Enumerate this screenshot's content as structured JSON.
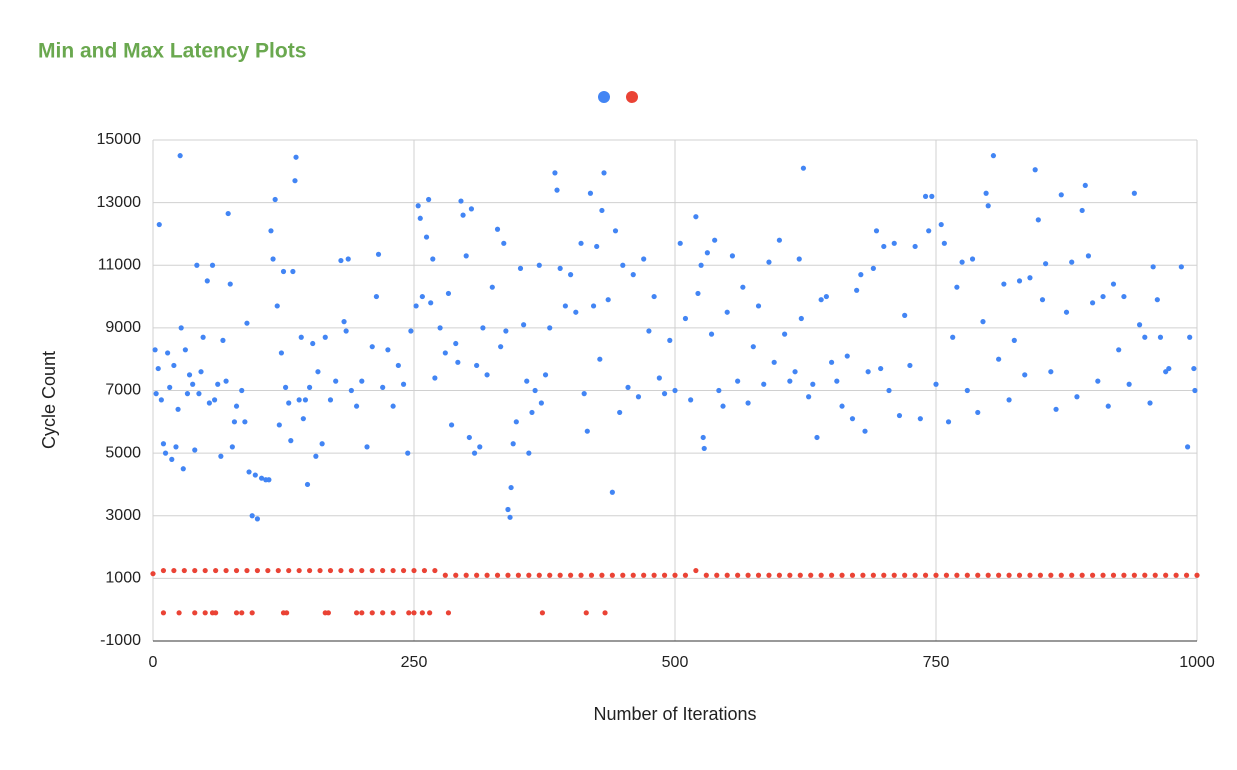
{
  "chart_data": {
    "type": "scatter",
    "title": "Min and Max Latency Plots",
    "x_label": "Number of Iterations",
    "y_label": "Cycle Count",
    "xlim": [
      0,
      1000
    ],
    "xticks": [
      0,
      250,
      500,
      750,
      1000
    ],
    "ylim": [
      -1000,
      15000
    ],
    "yticks": [
      -1000,
      1000,
      3000,
      5000,
      7000,
      9000,
      11000,
      13000,
      15000
    ],
    "grid": true,
    "legend": "top",
    "series": [
      {
        "color": "#4285f4",
        "x": [
          2,
          3,
          5,
          6,
          8,
          10,
          12,
          14,
          16,
          18,
          20,
          22,
          24,
          26,
          27,
          29,
          31,
          33,
          35,
          38,
          40,
          42,
          44,
          46,
          48,
          52,
          54,
          57,
          59,
          62,
          65,
          67,
          70,
          72,
          74,
          76,
          78,
          80,
          85,
          88,
          90,
          92,
          95,
          98,
          100,
          104,
          108,
          111,
          113,
          115,
          117,
          119,
          121,
          123,
          125,
          127,
          130,
          132,
          134,
          136,
          137,
          140,
          142,
          144,
          146,
          148,
          150,
          153,
          156,
          158,
          162,
          165,
          170,
          175,
          180,
          183,
          185,
          187,
          190,
          195,
          200,
          205,
          210,
          214,
          216,
          220,
          225,
          230,
          235,
          240,
          244,
          247,
          252,
          254,
          256,
          258,
          262,
          264,
          266,
          268,
          270,
          275,
          280,
          283,
          286,
          290,
          292,
          295,
          297,
          300,
          303,
          305,
          308,
          310,
          313,
          316,
          320,
          325,
          330,
          333,
          336,
          338,
          340,
          342,
          343,
          345,
          348,
          352,
          355,
          358,
          360,
          363,
          366,
          370,
          372,
          376,
          380,
          385,
          387,
          390,
          395,
          400,
          405,
          410,
          413,
          416,
          419,
          422,
          425,
          428,
          430,
          432,
          436,
          440,
          443,
          447,
          450,
          455,
          460,
          465,
          470,
          475,
          480,
          485,
          490,
          495,
          500,
          505,
          510,
          515,
          520,
          522,
          525,
          527,
          528,
          531,
          535,
          538,
          542,
          546,
          550,
          555,
          560,
          565,
          570,
          575,
          580,
          585,
          590,
          595,
          600,
          605,
          610,
          615,
          619,
          621,
          623,
          628,
          632,
          636,
          640,
          645,
          650,
          655,
          660,
          665,
          670,
          674,
          678,
          682,
          685,
          690,
          693,
          697,
          700,
          705,
          710,
          715,
          720,
          725,
          730,
          735,
          740,
          743,
          746,
          750,
          755,
          758,
          762,
          766,
          770,
          775,
          780,
          785,
          790,
          795,
          798,
          800,
          805,
          810,
          815,
          820,
          825,
          830,
          835,
          840,
          845,
          848,
          852,
          855,
          860,
          865,
          870,
          875,
          880,
          885,
          890,
          893,
          896,
          900,
          905,
          910,
          915,
          920,
          925,
          930,
          935,
          940,
          945,
          950,
          955,
          958,
          962,
          965,
          970,
          973,
          985,
          991,
          993,
          997,
          998
        ],
        "values": [
          8300,
          6900,
          7700,
          12300,
          6700,
          5300,
          5000,
          8200,
          7100,
          4800,
          7800,
          5200,
          6400,
          14500,
          9000,
          4500,
          8300,
          6900,
          7500,
          7200,
          5100,
          11000,
          6900,
          7600,
          8700,
          10500,
          6600,
          11000,
          6700,
          7200,
          4900,
          8600,
          7300,
          12650,
          10400,
          5200,
          6000,
          6500,
          7000,
          6000,
          9150,
          4400,
          3000,
          4300,
          2900,
          4200,
          4150,
          4150,
          12100,
          11200,
          13100,
          9700,
          5900,
          8200,
          10800,
          7100,
          6600,
          5400,
          10800,
          13700,
          14450,
          6700,
          8700,
          6100,
          6700,
          4000,
          7100,
          8500,
          4900,
          7600,
          5300,
          8700,
          6700,
          7300,
          11150,
          9200,
          8900,
          11200,
          7000,
          6500,
          7300,
          5200,
          8400,
          10000,
          11350,
          7100,
          8300,
          6500,
          7800,
          7200,
          5000,
          8900,
          9700,
          12900,
          12500,
          10000,
          11900,
          13100,
          9800,
          11200,
          7400,
          9000,
          8200,
          10100,
          5900,
          8500,
          7900,
          13050,
          12600,
          11300,
          5500,
          12800,
          5000,
          7800,
          5200,
          9000,
          7500,
          10300,
          12150,
          8400,
          11700,
          8900,
          3200,
          2950,
          3900,
          5300,
          6000,
          10900,
          9100,
          7300,
          5000,
          6300,
          7000,
          11000,
          6600,
          7500,
          9000,
          13950,
          13400,
          10900,
          9700,
          10700,
          9500,
          11700,
          6900,
          5700,
          13300,
          9700,
          11600,
          8000,
          12750,
          13950,
          9900,
          3750,
          12100,
          6300,
          11000,
          7100,
          10700,
          6800,
          11200,
          8900,
          10000,
          7400,
          6900,
          8600,
          7000,
          11700,
          9300,
          6700,
          12550,
          10100,
          11000,
          5500,
          5150,
          11400,
          8800,
          11800,
          7000,
          6500,
          9500,
          11300,
          7300,
          10300,
          6600,
          8400,
          9700,
          7200,
          11100,
          7900,
          11800,
          8800,
          7300,
          7600,
          11200,
          9300,
          14100,
          6800,
          7200,
          5500,
          9900,
          10000,
          7900,
          7300,
          6500,
          8100,
          6100,
          10200,
          10700,
          5700,
          7600,
          10900,
          12100,
          7700,
          11600,
          7000,
          11700,
          6200,
          9400,
          7800,
          11600,
          6100,
          13200,
          12100,
          13200,
          7200,
          12300,
          11700,
          6000,
          8700,
          10300,
          11100,
          7000,
          11200,
          6300,
          9200,
          13300,
          12900,
          14500,
          8000,
          10400,
          6700,
          8600,
          10500,
          7500,
          10600,
          14050,
          12450,
          9900,
          11050,
          7600,
          6400,
          13250,
          9500,
          11100,
          6800,
          12750,
          13550,
          11300,
          9800,
          7300,
          10000,
          6500,
          10400,
          8300,
          10000,
          7200,
          13300,
          9100,
          8700,
          6600,
          10950,
          9900,
          8700,
          7600,
          7700,
          10950,
          5200,
          8700,
          7700,
          7000
        ]
      },
      {
        "color": "#ea4335",
        "x": [
          0,
          10,
          20,
          30,
          40,
          50,
          60,
          70,
          80,
          90,
          100,
          110,
          120,
          130,
          140,
          150,
          160,
          170,
          180,
          190,
          200,
          210,
          220,
          230,
          240,
          250,
          260,
          270,
          280,
          290,
          300,
          310,
          320,
          330,
          340,
          350,
          360,
          370,
          380,
          390,
          400,
          410,
          420,
          430,
          440,
          450,
          460,
          470,
          480,
          490,
          500,
          510,
          520,
          530,
          540,
          550,
          560,
          570,
          580,
          590,
          600,
          610,
          620,
          630,
          640,
          650,
          660,
          670,
          680,
          690,
          700,
          710,
          720,
          730,
          740,
          750,
          760,
          770,
          780,
          790,
          800,
          810,
          820,
          830,
          840,
          850,
          860,
          870,
          880,
          890,
          900,
          910,
          920,
          930,
          940,
          950,
          960,
          970,
          980,
          990,
          1000,
          10,
          25,
          40,
          50,
          57,
          60,
          80,
          85,
          95,
          125,
          128,
          165,
          168,
          195,
          200,
          210,
          220,
          230,
          245,
          250,
          258,
          265,
          283,
          373,
          415,
          433
        ],
        "values": [
          1150,
          1250,
          1250,
          1250,
          1250,
          1250,
          1250,
          1250,
          1250,
          1250,
          1250,
          1250,
          1250,
          1250,
          1250,
          1250,
          1250,
          1250,
          1250,
          1250,
          1250,
          1250,
          1250,
          1250,
          1250,
          1250,
          1250,
          1250,
          1100,
          1100,
          1100,
          1100,
          1100,
          1100,
          1100,
          1100,
          1100,
          1100,
          1100,
          1100,
          1100,
          1100,
          1100,
          1100,
          1100,
          1100,
          1100,
          1100,
          1100,
          1100,
          1100,
          1100,
          1250,
          1100,
          1100,
          1100,
          1100,
          1100,
          1100,
          1100,
          1100,
          1100,
          1100,
          1100,
          1100,
          1100,
          1100,
          1100,
          1100,
          1100,
          1100,
          1100,
          1100,
          1100,
          1100,
          1100,
          1100,
          1100,
          1100,
          1100,
          1100,
          1100,
          1100,
          1100,
          1100,
          1100,
          1100,
          1100,
          1100,
          1100,
          1100,
          1100,
          1100,
          1100,
          1100,
          1100,
          1100,
          1100,
          1100,
          1100,
          1100,
          -100,
          -100,
          -100,
          -100,
          -100,
          -100,
          -100,
          -100,
          -100,
          -100,
          -100,
          -100,
          -100,
          -100,
          -100,
          -100,
          -100,
          -100,
          -100,
          -100,
          -100,
          -100,
          -100,
          -100,
          -100,
          -100
        ]
      }
    ]
  }
}
